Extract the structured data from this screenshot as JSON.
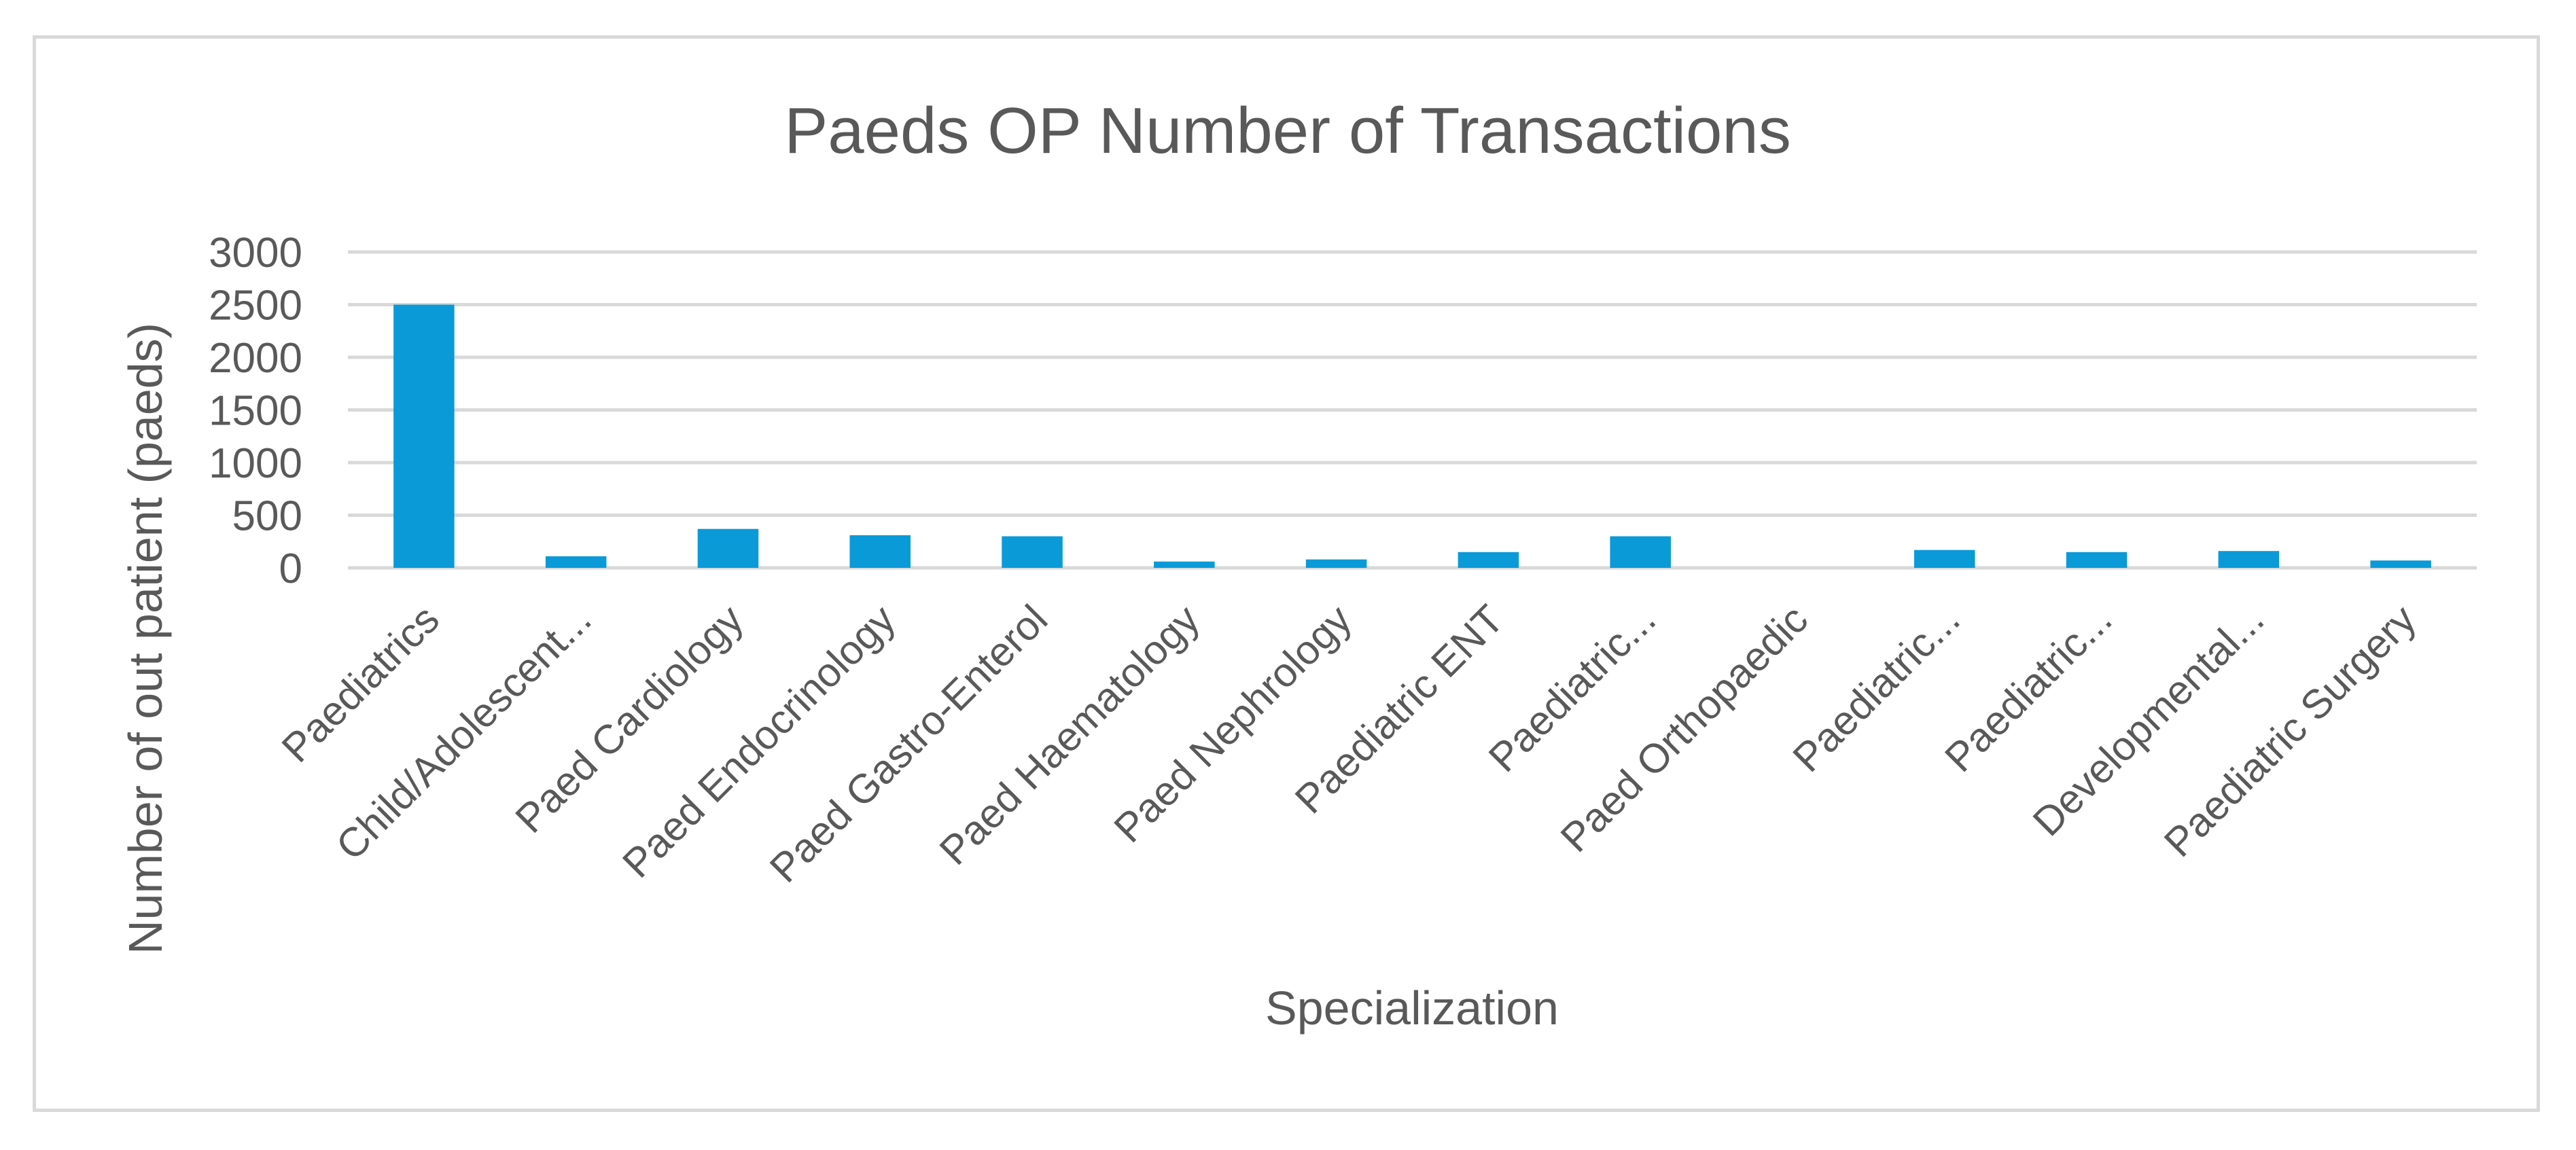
{
  "chart_data": {
    "type": "bar",
    "title": "Paeds OP Number of Transactions",
    "xlabel": "Specialization",
    "ylabel": "Number of  out patient (paeds)",
    "ylim": [
      0,
      3000
    ],
    "yticks": [
      0,
      500,
      1000,
      1500,
      2000,
      2500,
      3000
    ],
    "grid": true,
    "legend": "none",
    "bar_color": "#0a9ad7",
    "categories": [
      "Paediatrics",
      "Child/Adolescent...",
      "Paed Cardiology",
      "Paed Endocrinology",
      "Paed Gastro-Enterol",
      "Paed Haematology",
      "Paed Nephrology",
      "Paediatric ENT",
      "Paediatric...",
      "Paed Orthopaedic",
      "Paediatric...",
      "Paediatric...",
      "Developmental...",
      "Paediatric Surgery"
    ],
    "values": [
      2500,
      110,
      370,
      310,
      300,
      60,
      80,
      150,
      300,
      0,
      170,
      150,
      160,
      70
    ]
  }
}
